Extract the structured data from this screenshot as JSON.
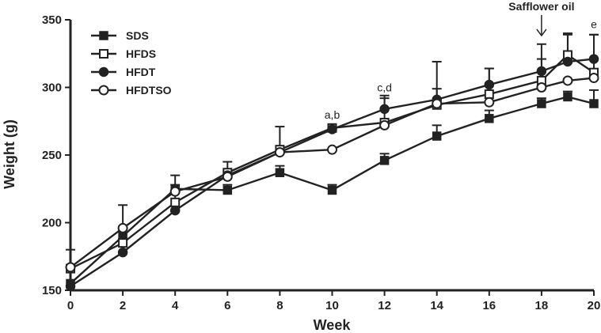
{
  "chart_data": {
    "type": "line",
    "title": "",
    "xlabel": "Week",
    "ylabel": "Weight (g)",
    "xlim": [
      0,
      20
    ],
    "ylim": [
      150,
      350
    ],
    "xticks": [
      0,
      2,
      4,
      6,
      8,
      10,
      12,
      14,
      16,
      18,
      20
    ],
    "yticks": [
      150,
      200,
      250,
      300,
      350
    ],
    "grid": false,
    "legend_position": "top-left",
    "series": [
      {
        "name": "SDS",
        "marker": "filled-square",
        "x": [
          0,
          2,
          4,
          6,
          8,
          10,
          12,
          14,
          16,
          18,
          19,
          20
        ],
        "values": [
          155,
          190,
          225,
          224,
          237,
          224,
          246,
          264,
          277,
          288,
          293,
          288
        ],
        "error": [
          0,
          0,
          3,
          4,
          5,
          4,
          5,
          8,
          6,
          4,
          4,
          10
        ]
      },
      {
        "name": "HFDS",
        "marker": "open-square",
        "x": [
          0,
          2,
          4,
          6,
          8,
          10,
          12,
          14,
          16,
          18,
          19,
          20
        ],
        "values": [
          166,
          185,
          215,
          237,
          254,
          270,
          274,
          287,
          295,
          305,
          324,
          311
        ],
        "error": [
          0,
          0,
          20,
          8,
          17,
          0,
          18,
          12,
          19,
          16,
          16,
          28
        ]
      },
      {
        "name": "HFDT",
        "marker": "filled-circle",
        "x": [
          0,
          2,
          4,
          6,
          8,
          10,
          12,
          14,
          16,
          18,
          19,
          20
        ],
        "values": [
          153,
          178,
          209,
          235,
          252,
          269,
          284,
          291,
          302,
          312,
          319,
          321
        ],
        "error": [
          0,
          0,
          0,
          0,
          0,
          0,
          10,
          28,
          12,
          20,
          20,
          18
        ]
      },
      {
        "name": "HFDTSO",
        "marker": "open-circle",
        "x": [
          0,
          2,
          4,
          6,
          8,
          10,
          12,
          14,
          16,
          18,
          19,
          20
        ],
        "values": [
          167,
          196,
          223,
          234,
          252,
          254,
          272,
          288,
          289,
          300,
          305,
          307
        ],
        "error": [
          13,
          17,
          0,
          0,
          0,
          0,
          0,
          0,
          0,
          0,
          0,
          0
        ]
      }
    ],
    "annotations": [
      {
        "text": "a,b",
        "x": 10,
        "y": 277
      },
      {
        "text": "c,d",
        "x": 12,
        "y": 297
      },
      {
        "text": "e",
        "x": 20,
        "y": 344
      },
      {
        "text": "Safflower oil",
        "x": 18,
        "y": 357,
        "arrow": true
      }
    ]
  }
}
